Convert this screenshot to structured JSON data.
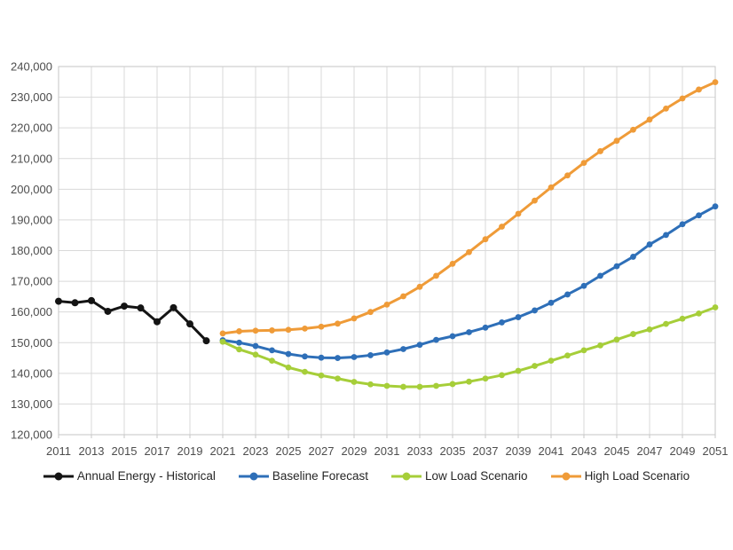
{
  "chart_data": {
    "type": "line",
    "title": "",
    "xlabel": "",
    "ylabel": "",
    "xlim": [
      2011,
      2051
    ],
    "x_tick_step": 2,
    "ylim": [
      120000,
      240000
    ],
    "y_step": 10000,
    "y_tick_format": "comma",
    "grid": true,
    "legend_position": "bottom",
    "grid_color": "#d9d9d9",
    "border_color": "#c6c6c6",
    "x_tick_labels": [
      2011,
      2013,
      2015,
      2017,
      2019,
      2021,
      2023,
      2025,
      2027,
      2029,
      2031,
      2033,
      2035,
      2037,
      2039,
      2041,
      2043,
      2045,
      2047,
      2049,
      2051
    ],
    "y_tick_labels": [
      "120,000",
      "130,000",
      "140,000",
      "150,000",
      "160,000",
      "170,000",
      "180,000",
      "190,000",
      "200,000",
      "210,000",
      "220,000",
      "230,000",
      "240,000"
    ],
    "series": [
      {
        "name": "Annual Energy - Historical",
        "slug": "annual-energy-historical",
        "color": "#141414",
        "marker_radius": 4,
        "start_year": 2011,
        "values": [
          163500,
          163000,
          163700,
          160200,
          161900,
          161300,
          156800,
          161400,
          156100,
          150600
        ]
      },
      {
        "name": "Baseline Forecast",
        "slug": "baseline-forecast",
        "color": "#2e6fb8",
        "marker_radius": 3.4,
        "start_year": 2021,
        "values": [
          150800,
          150000,
          148900,
          147500,
          146300,
          145500,
          145100,
          145000,
          145300,
          145900,
          146800,
          147900,
          149300,
          150900,
          152100,
          153400,
          154900,
          156600,
          158300,
          160500,
          163000,
          165700,
          168500,
          171800,
          174900,
          178000,
          182000,
          185100,
          188600,
          191500,
          194400
        ]
      },
      {
        "name": "Low Load Scenario",
        "slug": "low-load-scenario",
        "color": "#a6ce39",
        "marker_radius": 3.4,
        "start_year": 2021,
        "values": [
          150300,
          147800,
          146100,
          144100,
          141900,
          140500,
          139300,
          138300,
          137200,
          136400,
          135900,
          135600,
          135600,
          135900,
          136500,
          137300,
          138300,
          139400,
          140800,
          142400,
          144100,
          145800,
          147500,
          149100,
          151000,
          152800,
          154300,
          156100,
          157800,
          159500,
          161500
        ]
      },
      {
        "name": "High Load Scenario",
        "slug": "high-load-scenario",
        "color": "#ef9b38",
        "marker_radius": 3.4,
        "start_year": 2021,
        "values": [
          153000,
          153700,
          153900,
          154000,
          154200,
          154600,
          155200,
          156200,
          157900,
          160000,
          162400,
          165100,
          168200,
          171800,
          175700,
          179500,
          183700,
          187800,
          192000,
          196300,
          200600,
          204500,
          208600,
          212400,
          215800,
          219400,
          222700,
          226300,
          229600,
          232500,
          234900
        ]
      }
    ]
  }
}
